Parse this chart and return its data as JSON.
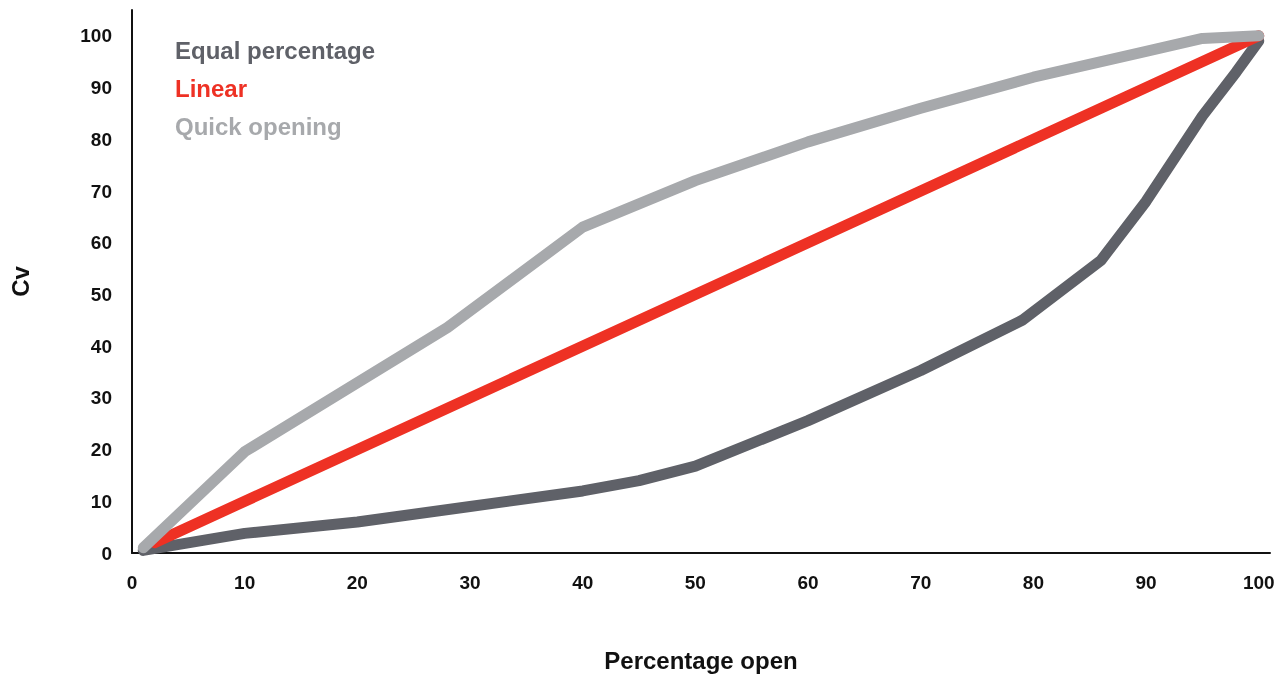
{
  "chart_data": {
    "type": "line",
    "xlabel": "Percentage open",
    "ylabel": "Cv",
    "xlim": [
      0,
      101
    ],
    "xticks": [
      0,
      10,
      20,
      30,
      40,
      50,
      60,
      70,
      80,
      90,
      100
    ],
    "ylim": [
      0,
      105
    ],
    "yticks": [
      0,
      10,
      20,
      30,
      40,
      50,
      60,
      70,
      80,
      90,
      100
    ],
    "grid": false,
    "legend": "top left",
    "marker": "none",
    "line_style": "solid",
    "series": [
      {
        "name": "Equal percentage",
        "color": "#5f6168",
        "x": [
          1,
          10,
          20,
          30,
          40,
          45,
          50,
          60,
          70,
          79,
          86,
          90,
          95,
          98,
          100
        ],
        "values": [
          0.5,
          3.8,
          6,
          9,
          12,
          14,
          16.8,
          25.6,
          35.3,
          45,
          56.6,
          68,
          84.5,
          93,
          99
        ]
      },
      {
        "name": "Linear",
        "color": "#ee3124",
        "x": [
          2,
          100
        ],
        "values": [
          2,
          100
        ]
      },
      {
        "name": "Quick opening",
        "color": "#a7a9ac",
        "x": [
          1,
          10,
          28,
          40,
          50,
          60,
          70,
          80,
          90,
          95,
          100
        ],
        "values": [
          1,
          19.6,
          43.6,
          63,
          72,
          79.5,
          86,
          92,
          97,
          99.5,
          100
        ]
      }
    ]
  }
}
